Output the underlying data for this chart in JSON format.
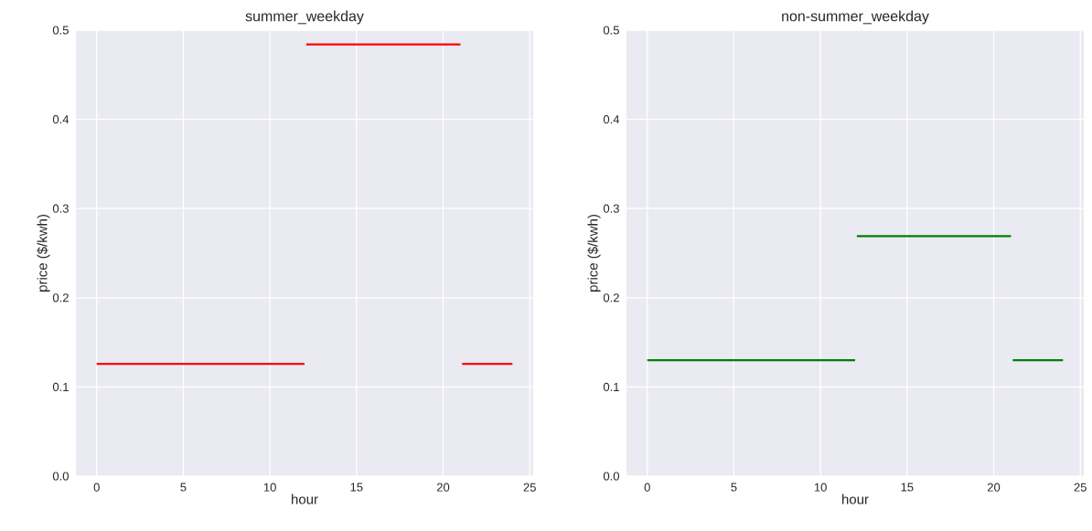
{
  "chart_data": [
    {
      "type": "line",
      "title": "summer_weekday",
      "xlabel": "hour",
      "ylabel": "price ($/kwh)",
      "xlim": [
        -1.2,
        25.2
      ],
      "ylim": [
        0,
        0.5
      ],
      "xticks": [
        0,
        5,
        10,
        15,
        20,
        25
      ],
      "yticks": [
        {
          "value": 0,
          "label": "0.0"
        },
        0.1,
        0.2,
        0.3,
        0.4,
        0.5
      ],
      "grid": true,
      "series": [
        {
          "color": "#ff0000",
          "x": [
            0,
            12
          ],
          "values": [
            0.126,
            0.126
          ]
        },
        {
          "color": "#ff0000",
          "x": [
            12.1,
            21
          ],
          "values": [
            0.484,
            0.484
          ]
        },
        {
          "color": "#ff0000",
          "x": [
            21.1,
            24
          ],
          "values": [
            0.126,
            0.126
          ]
        }
      ]
    },
    {
      "type": "line",
      "title": "non-summer_weekday",
      "xlabel": "hour",
      "ylabel": "price ($/kwh)",
      "xlim": [
        -1.2,
        25.2
      ],
      "ylim": [
        0,
        0.5
      ],
      "xticks": [
        0,
        5,
        10,
        15,
        20,
        25
      ],
      "yticks": [
        {
          "value": 0,
          "label": "0.0"
        },
        0.1,
        0.2,
        0.3,
        0.4,
        0.5
      ],
      "grid": true,
      "series": [
        {
          "color": "#008000",
          "x": [
            0,
            12
          ],
          "values": [
            0.13,
            0.13
          ]
        },
        {
          "color": "#008000",
          "x": [
            12.1,
            21
          ],
          "values": [
            0.269,
            0.269
          ]
        },
        {
          "color": "#008000",
          "x": [
            21.1,
            24
          ],
          "values": [
            0.13,
            0.13
          ]
        }
      ]
    }
  ]
}
